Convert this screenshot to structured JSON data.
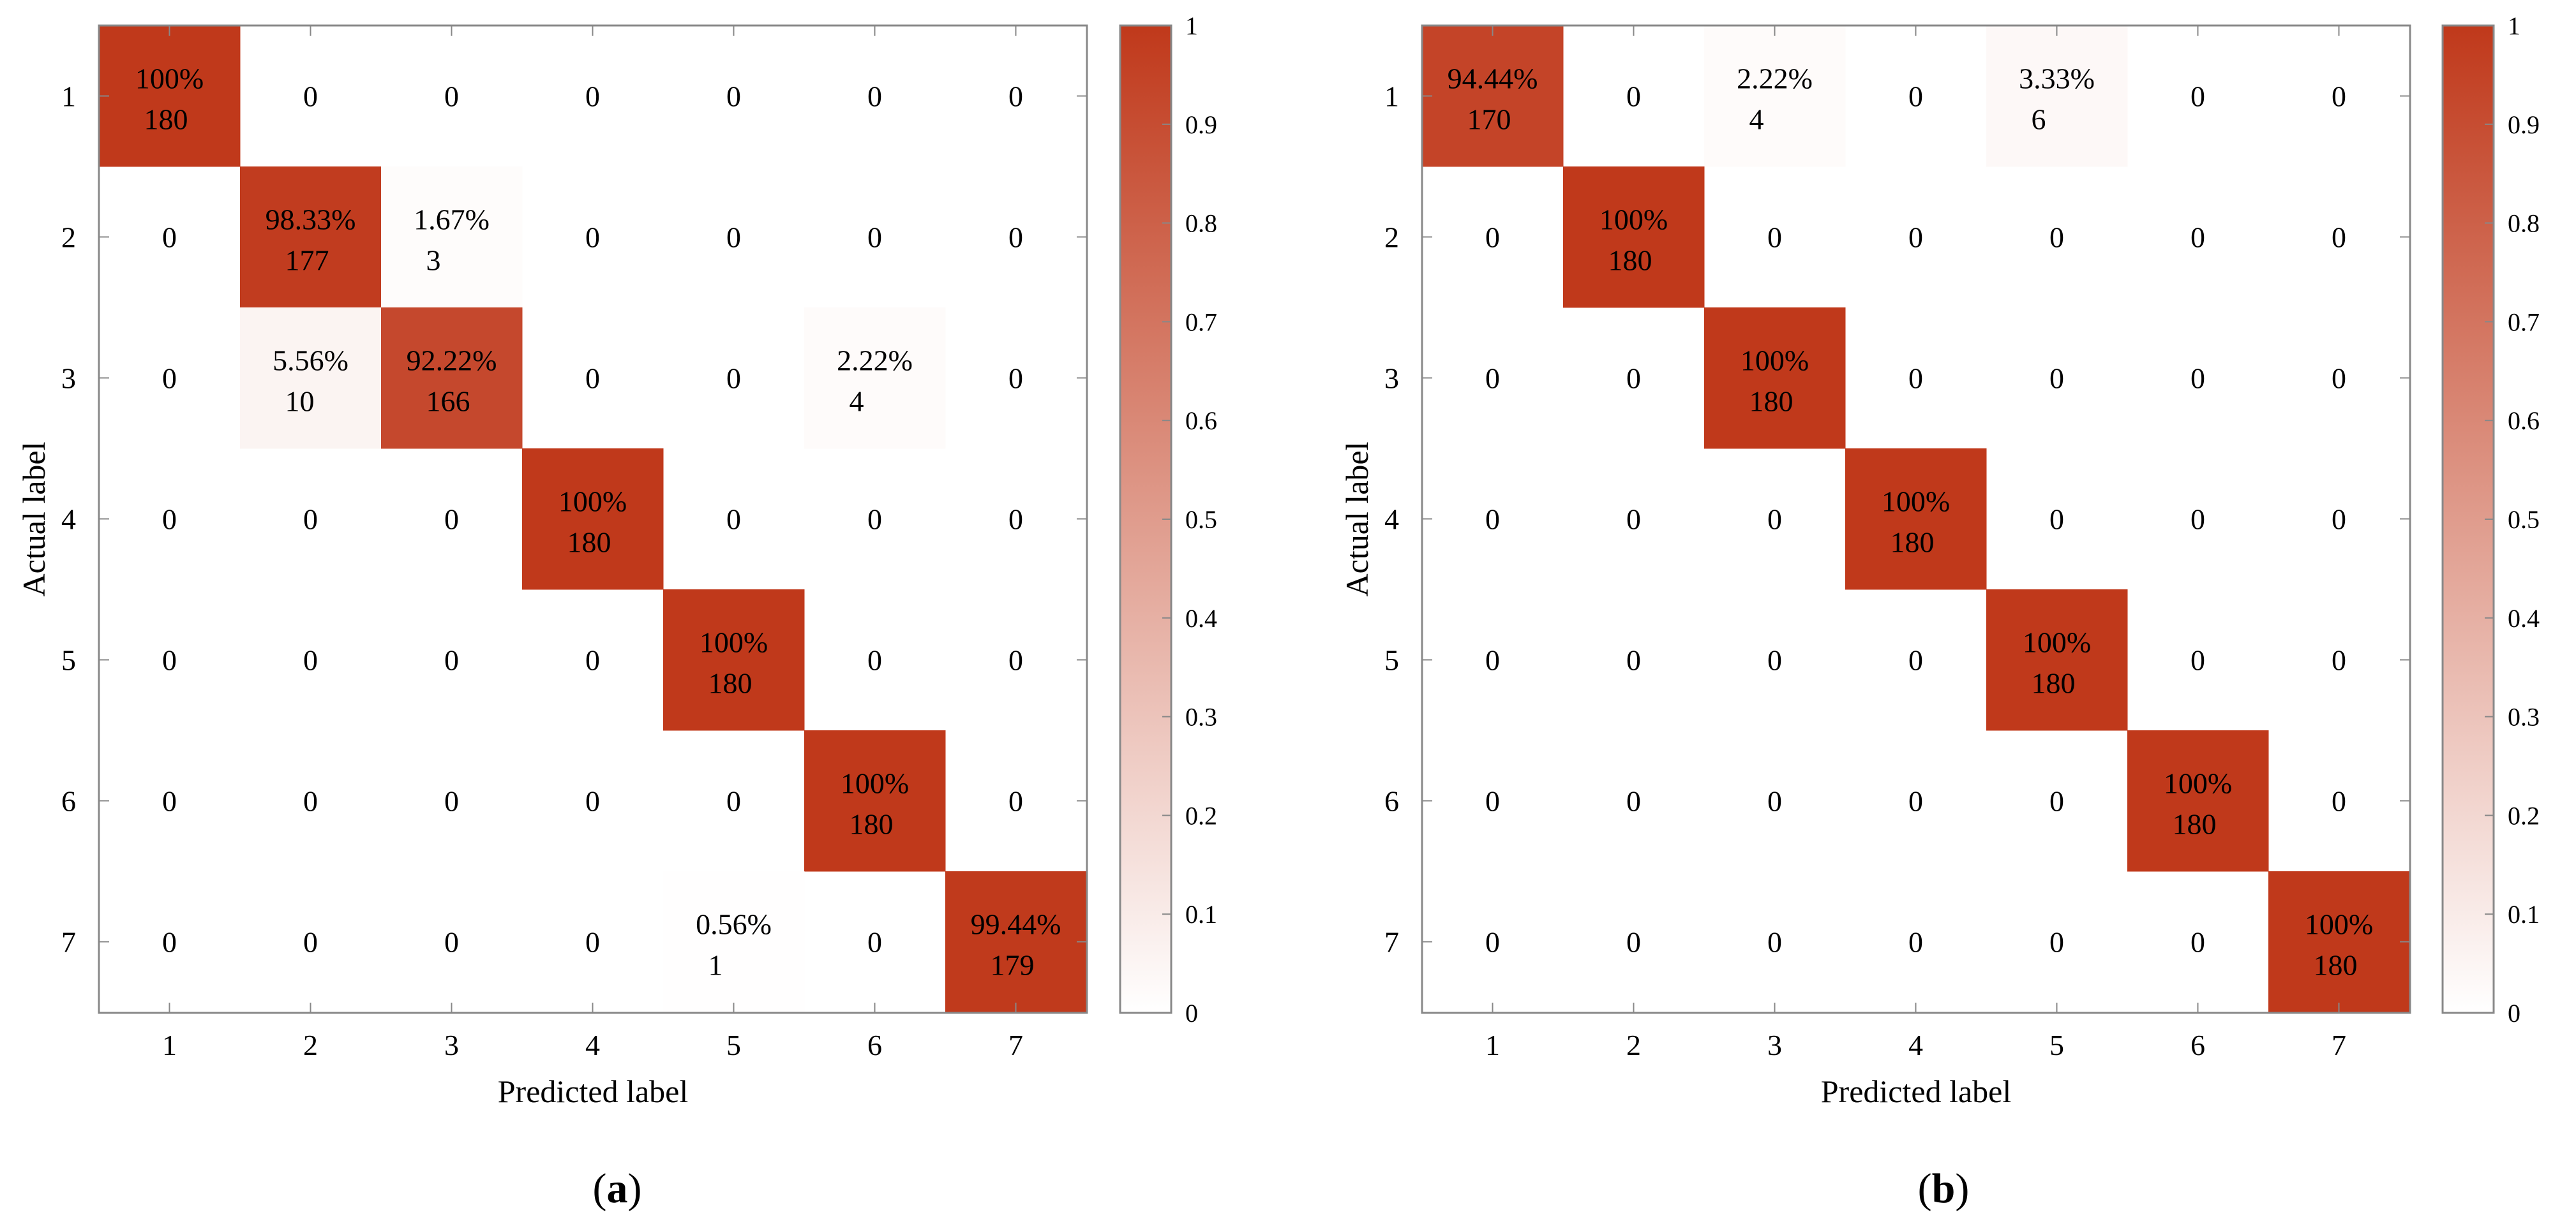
{
  "colors": {
    "high": "#c0391b",
    "low": "#ffffff",
    "frame": "#888888"
  },
  "chart_data": [
    {
      "type": "heatmap",
      "panel_label": "(a)",
      "panel_letter": "a",
      "xlabel": "Predicted label",
      "ylabel": "Actual label",
      "x_ticks": [
        "1",
        "2",
        "3",
        "4",
        "5",
        "6",
        "7"
      ],
      "y_ticks": [
        "1",
        "2",
        "3",
        "4",
        "5",
        "6",
        "7"
      ],
      "colorbar_range": [
        0,
        1
      ],
      "colorbar_ticks": [
        "0",
        "0.1",
        "0.2",
        "0.3",
        "0.4",
        "0.5",
        "0.6",
        "0.7",
        "0.8",
        "0.9",
        "1"
      ],
      "cells": [
        [
          {
            "pct": "100%",
            "count": "180",
            "value": 1.0
          },
          {
            "count": "0",
            "value": 0
          },
          {
            "count": "0",
            "value": 0
          },
          {
            "count": "0",
            "value": 0
          },
          {
            "count": "0",
            "value": 0
          },
          {
            "count": "0",
            "value": 0
          },
          {
            "count": "0",
            "value": 0
          }
        ],
        [
          {
            "count": "0",
            "value": 0
          },
          {
            "pct": "98.33%",
            "count": "177",
            "value": 0.9833
          },
          {
            "pct": "1.67%",
            "count": "3",
            "value": 0.0167
          },
          {
            "count": "0",
            "value": 0
          },
          {
            "count": "0",
            "value": 0
          },
          {
            "count": "0",
            "value": 0
          },
          {
            "count": "0",
            "value": 0
          }
        ],
        [
          {
            "count": "0",
            "value": 0
          },
          {
            "pct": "5.56%",
            "count": "10",
            "value": 0.0556
          },
          {
            "pct": "92.22%",
            "count": "166",
            "value": 0.9222
          },
          {
            "count": "0",
            "value": 0
          },
          {
            "count": "0",
            "value": 0
          },
          {
            "pct": "2.22%",
            "count": "4",
            "value": 0.0222
          },
          {
            "count": "0",
            "value": 0
          }
        ],
        [
          {
            "count": "0",
            "value": 0
          },
          {
            "count": "0",
            "value": 0
          },
          {
            "count": "0",
            "value": 0
          },
          {
            "pct": "100%",
            "count": "180",
            "value": 1.0
          },
          {
            "count": "0",
            "value": 0
          },
          {
            "count": "0",
            "value": 0
          },
          {
            "count": "0",
            "value": 0
          }
        ],
        [
          {
            "count": "0",
            "value": 0
          },
          {
            "count": "0",
            "value": 0
          },
          {
            "count": "0",
            "value": 0
          },
          {
            "count": "0",
            "value": 0
          },
          {
            "pct": "100%",
            "count": "180",
            "value": 1.0
          },
          {
            "count": "0",
            "value": 0
          },
          {
            "count": "0",
            "value": 0
          }
        ],
        [
          {
            "count": "0",
            "value": 0
          },
          {
            "count": "0",
            "value": 0
          },
          {
            "count": "0",
            "value": 0
          },
          {
            "count": "0",
            "value": 0
          },
          {
            "count": "0",
            "value": 0
          },
          {
            "pct": "100%",
            "count": "180",
            "value": 1.0
          },
          {
            "count": "0",
            "value": 0
          }
        ],
        [
          {
            "count": "0",
            "value": 0
          },
          {
            "count": "0",
            "value": 0
          },
          {
            "count": "0",
            "value": 0
          },
          {
            "count": "0",
            "value": 0
          },
          {
            "pct": "0.56%",
            "count": "1",
            "value": 0.0056
          },
          {
            "count": "0",
            "value": 0
          },
          {
            "pct": "99.44%",
            "count": "179",
            "value": 0.9944
          }
        ]
      ]
    },
    {
      "type": "heatmap",
      "panel_label": "(b)",
      "panel_letter": "b",
      "xlabel": "Predicted label",
      "ylabel": "Actual label",
      "x_ticks": [
        "1",
        "2",
        "3",
        "4",
        "5",
        "6",
        "7"
      ],
      "y_ticks": [
        "1",
        "2",
        "3",
        "4",
        "5",
        "6",
        "7"
      ],
      "colorbar_range": [
        0,
        1
      ],
      "colorbar_ticks": [
        "0",
        "0.1",
        "0.2",
        "0.3",
        "0.4",
        "0.5",
        "0.6",
        "0.7",
        "0.8",
        "0.9",
        "1"
      ],
      "cells": [
        [
          {
            "pct": "94.44%",
            "count": "170",
            "value": 0.9444
          },
          {
            "count": "0",
            "value": 0
          },
          {
            "pct": "2.22%",
            "count": "4",
            "value": 0.0222
          },
          {
            "count": "0",
            "value": 0
          },
          {
            "pct": "3.33%",
            "count": "6",
            "value": 0.0333
          },
          {
            "count": "0",
            "value": 0
          },
          {
            "count": "0",
            "value": 0
          }
        ],
        [
          {
            "count": "0",
            "value": 0
          },
          {
            "pct": "100%",
            "count": "180",
            "value": 1.0
          },
          {
            "count": "0",
            "value": 0
          },
          {
            "count": "0",
            "value": 0
          },
          {
            "count": "0",
            "value": 0
          },
          {
            "count": "0",
            "value": 0
          },
          {
            "count": "0",
            "value": 0
          }
        ],
        [
          {
            "count": "0",
            "value": 0
          },
          {
            "count": "0",
            "value": 0
          },
          {
            "pct": "100%",
            "count": "180",
            "value": 1.0
          },
          {
            "count": "0",
            "value": 0
          },
          {
            "count": "0",
            "value": 0
          },
          {
            "count": "0",
            "value": 0
          },
          {
            "count": "0",
            "value": 0
          }
        ],
        [
          {
            "count": "0",
            "value": 0
          },
          {
            "count": "0",
            "value": 0
          },
          {
            "count": "0",
            "value": 0
          },
          {
            "pct": "100%",
            "count": "180",
            "value": 1.0
          },
          {
            "count": "0",
            "value": 0
          },
          {
            "count": "0",
            "value": 0
          },
          {
            "count": "0",
            "value": 0
          }
        ],
        [
          {
            "count": "0",
            "value": 0
          },
          {
            "count": "0",
            "value": 0
          },
          {
            "count": "0",
            "value": 0
          },
          {
            "count": "0",
            "value": 0
          },
          {
            "pct": "100%",
            "count": "180",
            "value": 1.0
          },
          {
            "count": "0",
            "value": 0
          },
          {
            "count": "0",
            "value": 0
          }
        ],
        [
          {
            "count": "0",
            "value": 0
          },
          {
            "count": "0",
            "value": 0
          },
          {
            "count": "0",
            "value": 0
          },
          {
            "count": "0",
            "value": 0
          },
          {
            "count": "0",
            "value": 0
          },
          {
            "pct": "100%",
            "count": "180",
            "value": 1.0
          },
          {
            "count": "0",
            "value": 0
          }
        ],
        [
          {
            "count": "0",
            "value": 0
          },
          {
            "count": "0",
            "value": 0
          },
          {
            "count": "0",
            "value": 0
          },
          {
            "count": "0",
            "value": 0
          },
          {
            "count": "0",
            "value": 0
          },
          {
            "count": "0",
            "value": 0
          },
          {
            "pct": "100%",
            "count": "180",
            "value": 1.0
          }
        ]
      ]
    }
  ]
}
